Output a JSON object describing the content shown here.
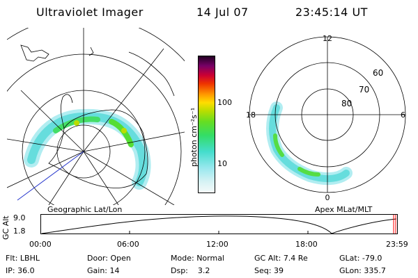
{
  "header": {
    "title": "Ultraviolet Imager",
    "date": "14 Jul 07",
    "time": "23:45:14 UT"
  },
  "left_panel": {
    "label": "Geographic Lat/Lon"
  },
  "right_panel": {
    "label": "Apex MLat/MLT",
    "mlt_labels": {
      "top": "12",
      "left": "18",
      "right": "6",
      "bottom": "0"
    },
    "lat_labels": [
      "60",
      "70",
      "80"
    ]
  },
  "colorbar": {
    "unit_label": "photon cm⁻²s⁻¹",
    "ticks": [
      "100",
      "10"
    ]
  },
  "altitude_plot": {
    "axis_title": "GC Alt",
    "y_ticks": [
      "9.0",
      "1.8"
    ],
    "x_ticks": [
      "00:00",
      "06:00",
      "12:00",
      "18:00",
      "23:59"
    ]
  },
  "status": {
    "row1": [
      {
        "label": "Flt:",
        "value": "LBHL"
      },
      {
        "label": "Door:",
        "value": "Open"
      },
      {
        "label": "Mode:",
        "value": "Normal"
      },
      {
        "label": "GC Alt:",
        "value": "7.4 Re"
      },
      {
        "label": "GLat:",
        "value": "-79.0"
      }
    ],
    "row2": [
      {
        "label": "IP:",
        "value": "36.0"
      },
      {
        "label": "Gain:",
        "value": "14"
      },
      {
        "label": "Dsp:",
        "value": "3.2"
      },
      {
        "label": "Seq:",
        "value": "39"
      },
      {
        "label": "GLon:",
        "value": "335.7"
      }
    ]
  },
  "colors": {
    "aurora_low": "#66dddd",
    "aurora_mid": "#44dd44",
    "aurora_high": "#ccdd00",
    "marker": "#ff0000",
    "ground_track": "#2233cc"
  }
}
